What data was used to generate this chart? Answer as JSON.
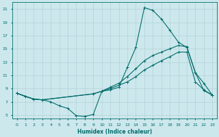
{
  "xlabel": "Humidex (Indice chaleur)",
  "xlim": [
    -0.5,
    23.5
  ],
  "ylim": [
    4.5,
    22
  ],
  "xticks": [
    0,
    1,
    2,
    3,
    4,
    5,
    6,
    7,
    8,
    9,
    10,
    11,
    12,
    13,
    14,
    15,
    16,
    17,
    18,
    19,
    20,
    21,
    22,
    23
  ],
  "yticks": [
    5,
    7,
    9,
    11,
    13,
    15,
    17,
    19,
    21
  ],
  "background_color": "#cce8ec",
  "grid_color": "#aacdd4",
  "line_color": "#006b6b",
  "line1_x": [
    0,
    1,
    2,
    3,
    4,
    5,
    6,
    7,
    8,
    9,
    10,
    11,
    12,
    13,
    14,
    15,
    16,
    17,
    18,
    19,
    20,
    21,
    22,
    23
  ],
  "line1_y": [
    8.3,
    7.8,
    7.4,
    7.3,
    7.0,
    6.4,
    6.0,
    4.9,
    4.8,
    5.1,
    8.6,
    8.8,
    9.2,
    12.2,
    15.2,
    21.2,
    20.8,
    19.5,
    17.8,
    16.0,
    15.2,
    11.4,
    8.7,
    8.0
  ],
  "line2_x": [
    0,
    2,
    3,
    9,
    10,
    11,
    12,
    13,
    14,
    15,
    16,
    17,
    18,
    19,
    20,
    21,
    22,
    23
  ],
  "line2_y": [
    8.3,
    7.4,
    7.3,
    8.2,
    8.6,
    9.2,
    9.8,
    10.8,
    12.0,
    13.2,
    14.0,
    14.5,
    15.0,
    15.5,
    15.3,
    11.4,
    9.8,
    8.0
  ],
  "line3_x": [
    0,
    2,
    3,
    9,
    10,
    11,
    12,
    13,
    14,
    15,
    16,
    17,
    18,
    19,
    20,
    21,
    22,
    23
  ],
  "line3_y": [
    8.3,
    7.4,
    7.3,
    8.2,
    8.6,
    9.0,
    9.5,
    10.0,
    10.8,
    11.8,
    12.5,
    13.2,
    13.8,
    14.5,
    14.5,
    10.0,
    8.8,
    8.0
  ]
}
